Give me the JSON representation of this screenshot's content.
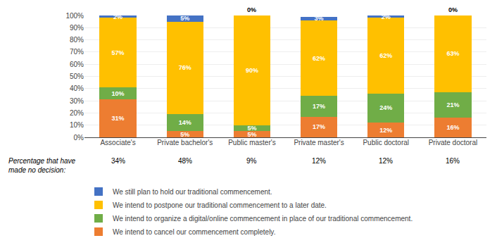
{
  "chart_data": {
    "type": "bar",
    "stacked": true,
    "data_labels": true,
    "grid": true,
    "legend": "bottom",
    "categories": [
      "Associate's",
      "Private bachelor's",
      "Public master's",
      "Private master's",
      "Public doctoral",
      "Private doctoral"
    ],
    "series": [
      {
        "name": "We intend to cancel our commencement completely.",
        "color": "#ED7D31",
        "values": [
          31,
          5,
          5,
          17,
          12,
          16
        ],
        "value_labels": [
          "31%",
          "5%",
          "5%",
          "17%",
          "12%",
          "16%"
        ]
      },
      {
        "name": "We intend to organize a digital/online commencement in place of our traditional commencement.",
        "color": "#70AD47",
        "values": [
          10,
          14,
          5,
          17,
          24,
          21
        ],
        "value_labels": [
          "10%",
          "14%",
          "5%",
          "17%",
          "24%",
          "21%"
        ]
      },
      {
        "name": "We intend to postpone our traditional commencement to a later date.",
        "color": "#FFC000",
        "values": [
          57,
          76,
          90,
          62,
          62,
          63
        ],
        "value_labels": [
          "57%",
          "76%",
          "90%",
          "62%",
          "62%",
          "63%"
        ]
      },
      {
        "name": "We still plan to hold our traditional commencement.",
        "color": "#4472C4",
        "values": [
          2,
          5,
          0,
          3,
          2,
          0
        ],
        "value_labels": [
          "2%",
          "5%",
          "0%",
          "3%",
          "2%",
          "0%"
        ]
      }
    ],
    "ylim": [
      0,
      100
    ],
    "yticks": [
      {
        "value": 0,
        "label": "0%"
      },
      {
        "value": 10,
        "label": "10%"
      },
      {
        "value": 20,
        "label": "20%"
      },
      {
        "value": 30,
        "label": "30%"
      },
      {
        "value": 40,
        "label": "40%"
      },
      {
        "value": 50,
        "label": "50%"
      },
      {
        "value": 60,
        "label": "60%"
      },
      {
        "value": 70,
        "label": "70%"
      },
      {
        "value": 80,
        "label": "80%"
      },
      {
        "value": 90,
        "label": "90%"
      },
      {
        "value": 100,
        "label": "100%"
      }
    ],
    "annotations": [
      {
        "text": "Percentage that have\nmade no decision:"
      },
      {
        "text": "34%",
        "category": "Associate's"
      },
      {
        "text": "48%",
        "category": "Private bachelor's"
      },
      {
        "text": "9%",
        "category": "Public master's"
      },
      {
        "text": "12%",
        "category": "Private master's"
      },
      {
        "text": "12%",
        "category": "Public doctoral"
      },
      {
        "text": "16%",
        "category": "Private doctoral"
      }
    ]
  }
}
